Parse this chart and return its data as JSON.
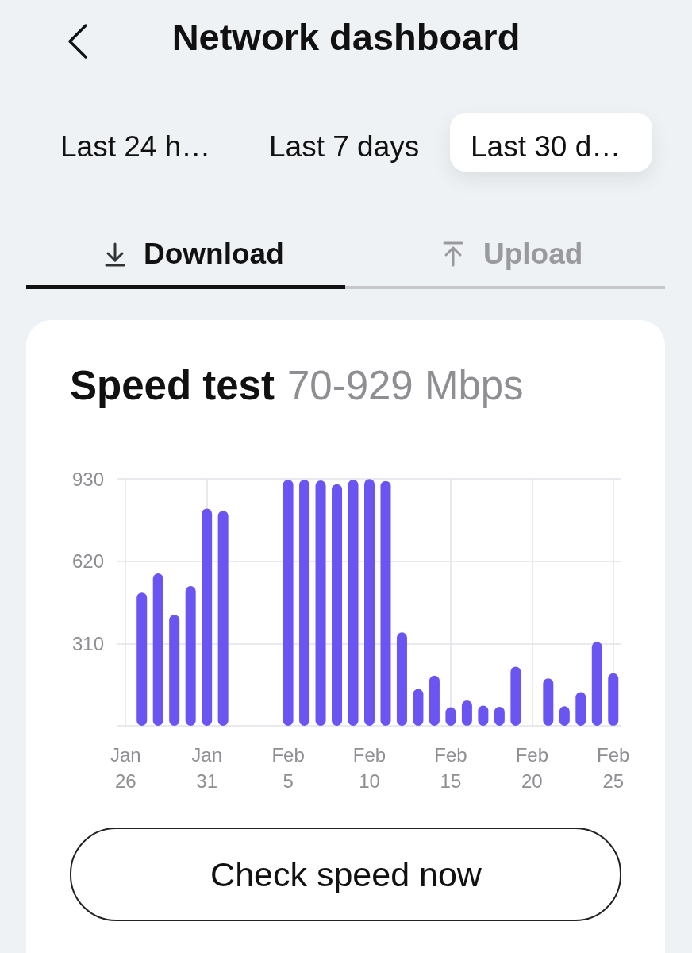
{
  "chart_data": {
    "type": "bar",
    "title": "Speed test",
    "subtitle": "70-929 Mbps",
    "annotations": [
      "Network dashboard",
      "Last 24 h…",
      "Last 7 days",
      "Last 30 d…",
      "Download",
      "Upload",
      "Check speed now"
    ],
    "categories": [
      "Jan 26",
      null,
      null,
      null,
      null,
      "Jan 31",
      null,
      null,
      null,
      null,
      "Feb 5",
      null,
      null,
      null,
      null,
      "Feb 10",
      null,
      null,
      null,
      null,
      "Feb 15",
      null,
      null,
      null,
      null,
      "Feb 20",
      null,
      null,
      null,
      null,
      "Feb 25"
    ],
    "values": [
      null,
      502,
      574,
      418,
      526,
      818,
      810,
      null,
      null,
      null,
      927,
      927,
      924,
      910,
      927,
      929,
      922,
      352,
      139,
      189,
      70,
      96,
      76,
      72,
      223,
      null,
      179,
      74,
      127,
      316,
      198
    ],
    "color": "#6b55f2",
    "ylim": [
      0,
      930
    ],
    "yticks": [
      {
        "value": 0,
        "label": null
      },
      310,
      620,
      930
    ],
    "grid": true
  }
}
